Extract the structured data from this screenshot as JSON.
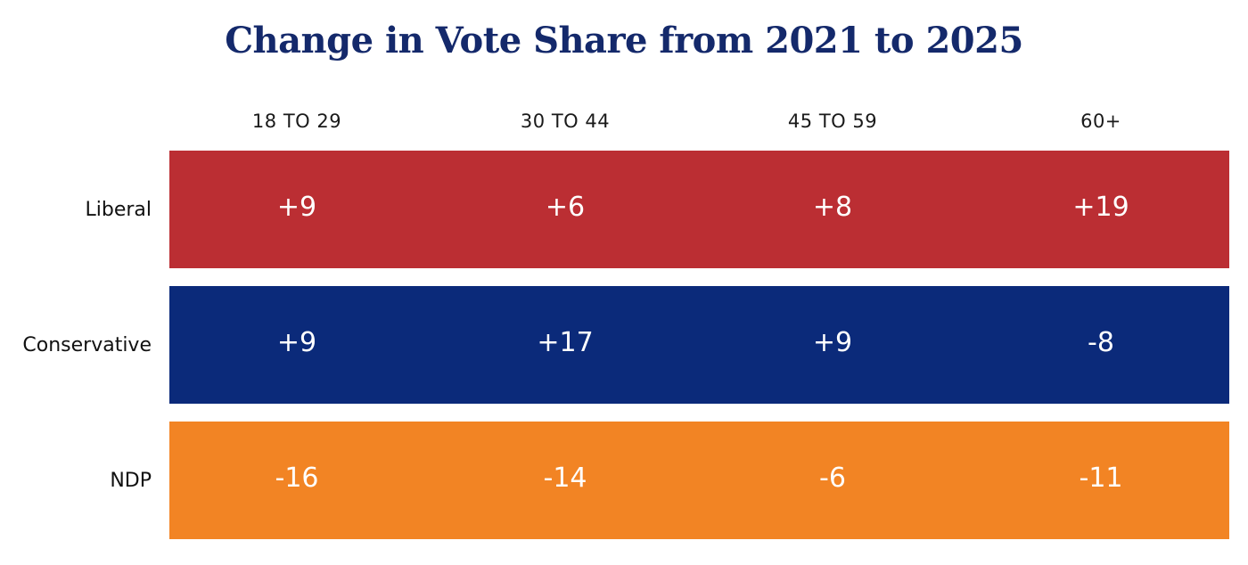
{
  "chart_data": {
    "type": "table",
    "title": "Change in Vote Share from 2021 to 2025",
    "categories": [
      "18 TO 29",
      "30 TO 44",
      "45 TO 59",
      "60+"
    ],
    "series": [
      {
        "name": "Liberal",
        "color": "#bb2e33",
        "values": [
          "+9",
          "+6",
          "+8",
          "+19"
        ]
      },
      {
        "name": "Conservative",
        "color": "#0b2a7a",
        "values": [
          "+9",
          "+17",
          "+9",
          "-8"
        ]
      },
      {
        "name": "NDP",
        "color": "#f28424",
        "values": [
          "-16",
          "-14",
          "-6",
          "-11"
        ]
      }
    ]
  }
}
